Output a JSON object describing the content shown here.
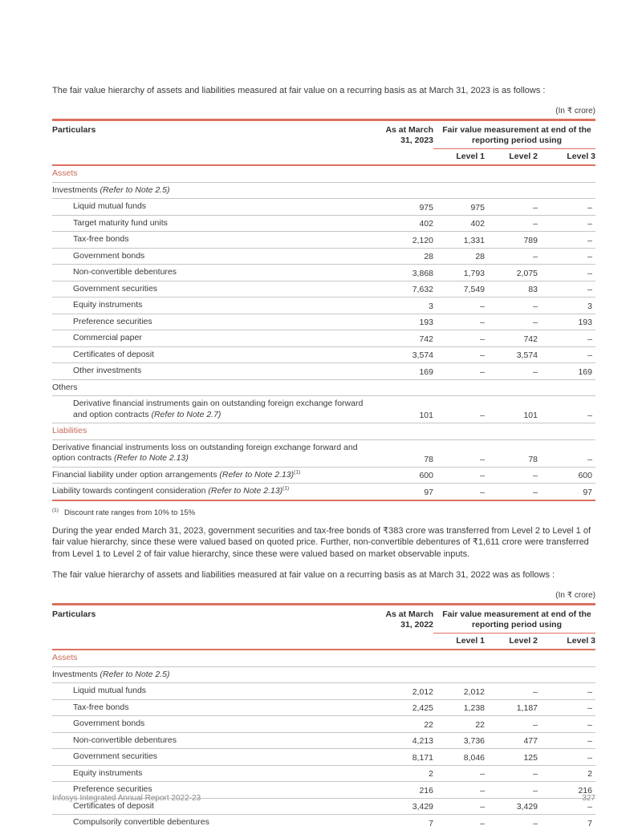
{
  "colors": {
    "accent_line": "#dc7060",
    "accent_text": "#c96a58",
    "row_line": "#c6c6c6",
    "body_text": "#3a3a3a",
    "footer_text": "#8a8a8a"
  },
  "page": {
    "intro_2023": "The fair value hierarchy of assets and liabilities measured at fair value on a recurring basis as at March 31, 2023 is as follows :",
    "unit_label": "(In ₹ crore)",
    "footnote": {
      "marker": "(1)",
      "text": "Discount rate ranges from 10% to 15%"
    },
    "transfer_paragraph": "During the year ended March 31, 2023, government securities and tax-free bonds of ₹383 crore was transferred from Level 2 to Level 1 of fair value hierarchy, since these were valued based on quoted price. Further, non-convertible debentures of ₹1,611 crore were transferred from Level 1 to Level 2 of fair value hierarchy, since these were valued based on market observable inputs.",
    "intro_2022": "The fair value hierarchy of assets and liabilities measured at fair value on a recurring basis as at March 31, 2022 was as follows :",
    "footer": {
      "left": "Infosys Integrated Annual Report 2022-23",
      "page_number": "327"
    }
  },
  "table_2023": {
    "headers": {
      "particulars": "Particulars",
      "as_at": "As at March 31, 2023",
      "group": "Fair value measurement at end of the reporting period using",
      "levels": [
        "Level 1",
        "Level 2",
        "Level 3"
      ]
    },
    "rows": [
      {
        "type": "section",
        "accent": true,
        "label": "Assets"
      },
      {
        "type": "subsection",
        "label": "Investments",
        "note": "(Refer to Note 2.5)"
      },
      {
        "type": "item",
        "indent": true,
        "label": "Liquid mutual funds",
        "values": [
          "975",
          "975",
          "–",
          "–"
        ]
      },
      {
        "type": "item",
        "indent": true,
        "label": "Target maturity fund units",
        "values": [
          "402",
          "402",
          "–",
          "–"
        ]
      },
      {
        "type": "item",
        "indent": true,
        "label": "Tax-free bonds",
        "values": [
          "2,120",
          "1,331",
          "789",
          "–"
        ]
      },
      {
        "type": "item",
        "indent": true,
        "label": "Government bonds",
        "values": [
          "28",
          "28",
          "–",
          "–"
        ]
      },
      {
        "type": "item",
        "indent": true,
        "label": "Non-convertible debentures",
        "values": [
          "3,868",
          "1,793",
          "2,075",
          "–"
        ]
      },
      {
        "type": "item",
        "indent": true,
        "label": "Government securities",
        "values": [
          "7,632",
          "7,549",
          "83",
          "–"
        ]
      },
      {
        "type": "item",
        "indent": true,
        "label": "Equity instruments",
        "values": [
          "3",
          "–",
          "–",
          "3"
        ]
      },
      {
        "type": "item",
        "indent": true,
        "label": "Preference securities",
        "values": [
          "193",
          "–",
          "–",
          "193"
        ]
      },
      {
        "type": "item",
        "indent": true,
        "label": "Commercial paper",
        "values": [
          "742",
          "–",
          "742",
          "–"
        ]
      },
      {
        "type": "item",
        "indent": true,
        "label": "Certificates of deposit",
        "values": [
          "3,574",
          "–",
          "3,574",
          "–"
        ]
      },
      {
        "type": "item",
        "indent": true,
        "label": "Other investments",
        "values": [
          "169",
          "–",
          "–",
          "169"
        ]
      },
      {
        "type": "section",
        "label": "Others"
      },
      {
        "type": "item",
        "indent": true,
        "label": "Derivative financial instruments gain on outstanding foreign exchange forward and option contracts",
        "note": "(Refer to Note 2.7)",
        "values": [
          "101",
          "–",
          "101",
          "–"
        ]
      },
      {
        "type": "section",
        "accent": true,
        "label": "Liabilities"
      },
      {
        "type": "item",
        "label": "Derivative financial instruments loss on outstanding foreign exchange forward and option contracts",
        "note": "(Refer to Note 2.13)",
        "values": [
          "78",
          "–",
          "78",
          "–"
        ]
      },
      {
        "type": "item",
        "label": "Financial liability under option arrangements",
        "note": "(Refer to Note 2.13)",
        "sup": "(1)",
        "values": [
          "600",
          "–",
          "–",
          "600"
        ]
      },
      {
        "type": "item",
        "last": true,
        "label": "Liability towards contingent consideration",
        "note": "(Refer to Note 2.13)",
        "sup": "(1)",
        "values": [
          "97",
          "–",
          "–",
          "97"
        ]
      }
    ]
  },
  "table_2022": {
    "headers": {
      "particulars": "Particulars",
      "as_at": "As at March 31, 2022",
      "group": "Fair value measurement at end of the reporting period using",
      "levels": [
        "Level 1",
        "Level 2",
        "Level 3"
      ]
    },
    "rows": [
      {
        "type": "section",
        "accent": true,
        "label": "Assets"
      },
      {
        "type": "subsection",
        "label": "Investments",
        "note": "(Refer to Note 2.5)"
      },
      {
        "type": "item",
        "indent": true,
        "label": "Liquid mutual funds",
        "values": [
          "2,012",
          "2,012",
          "–",
          "–"
        ]
      },
      {
        "type": "item",
        "indent": true,
        "label": "Tax-free bonds",
        "values": [
          "2,425",
          "1,238",
          "1,187",
          "–"
        ]
      },
      {
        "type": "item",
        "indent": true,
        "label": "Government bonds",
        "values": [
          "22",
          "22",
          "–",
          "–"
        ]
      },
      {
        "type": "item",
        "indent": true,
        "label": "Non-convertible debentures",
        "values": [
          "4,213",
          "3,736",
          "477",
          "–"
        ]
      },
      {
        "type": "item",
        "indent": true,
        "label": "Government securities",
        "values": [
          "8,171",
          "8,046",
          "125",
          "–"
        ]
      },
      {
        "type": "item",
        "indent": true,
        "label": "Equity instruments",
        "values": [
          "2",
          "–",
          "–",
          "2"
        ]
      },
      {
        "type": "item",
        "indent": true,
        "label": "Preference securities",
        "values": [
          "216",
          "–",
          "–",
          "216"
        ]
      },
      {
        "type": "item",
        "indent": true,
        "label": "Certificates of deposit",
        "values": [
          "3,429",
          "–",
          "3,429",
          "–"
        ]
      },
      {
        "type": "item",
        "indent": true,
        "label": "Compulsorily convertible debentures",
        "values": [
          "7",
          "–",
          "–",
          "7"
        ]
      }
    ]
  }
}
